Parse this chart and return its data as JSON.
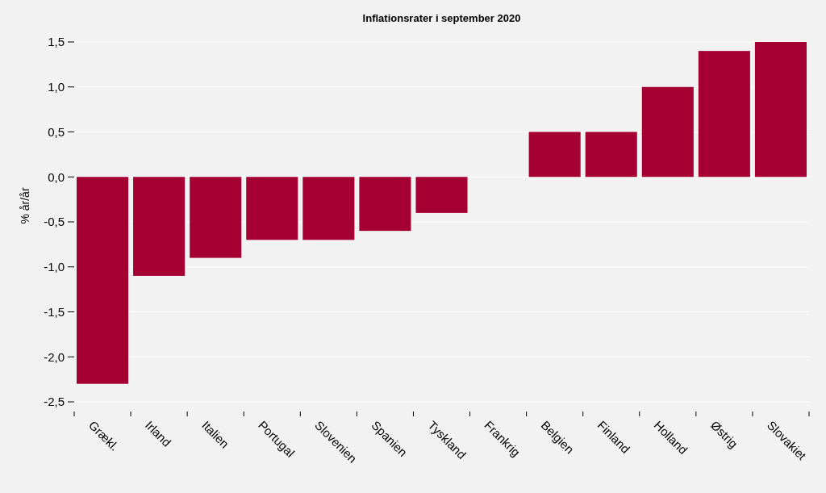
{
  "chart_data": {
    "type": "bar",
    "title": "Inflationsrater i september 2020",
    "ylabel": "% år/år",
    "categories": [
      "Grækl.",
      "Irland",
      "Italien",
      "Portugal",
      "Slovenien",
      "Spanien",
      "Tyskland",
      "Frankrig",
      "Belgien",
      "Finland",
      "Holland",
      "Østrig",
      "Slovakiet"
    ],
    "values": [
      -2.3,
      -1.1,
      -0.9,
      -0.7,
      -0.7,
      -0.6,
      -0.4,
      0,
      0.5,
      0.5,
      1.0,
      1.4,
      1.5
    ],
    "color": "#a50034",
    "ylim": [
      -2.5,
      1.5
    ],
    "yticks": [
      {
        "value": -2.5,
        "label": "-2,5"
      },
      {
        "value": -2,
        "label": "-2,0"
      },
      {
        "value": -1.5,
        "label": "-1,5"
      },
      {
        "value": -1,
        "label": "-1,0"
      },
      {
        "value": -0.5,
        "label": "-0,5"
      },
      {
        "value": 0,
        "label": "0,0"
      },
      {
        "value": 0.5,
        "label": "0,5"
      },
      {
        "value": 1,
        "label": "1,0"
      },
      {
        "value": 1.5,
        "label": "1,5"
      }
    ],
    "grid": "y"
  }
}
